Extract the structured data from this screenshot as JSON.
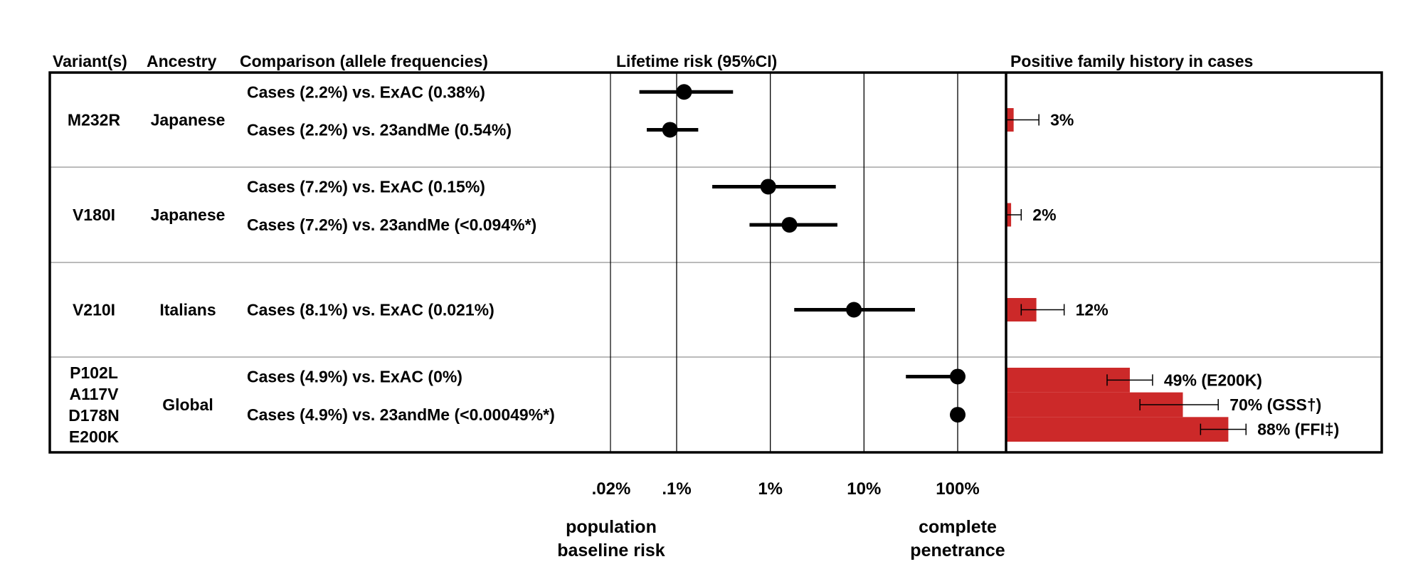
{
  "chart_data": {
    "type": "forest-plot-with-bars",
    "columns": {
      "variants": "Variant(s)",
      "ancestry": "Ancestry",
      "comparison": "Comparison (allele frequencies)",
      "risk": "Lifetime risk (95%CI)",
      "family": "Positive family history in cases"
    },
    "groups": [
      {
        "variants": [
          "M232R"
        ],
        "ancestry": "Japanese",
        "rows": [
          {
            "label": "Cases (2.2%) vs. ExAC (0.38%)",
            "estimate": 0.12,
            "lower": 0.04,
            "upper": 0.4
          },
          {
            "label": "Cases (2.2%) vs. 23andMe (0.54%)",
            "estimate": 0.085,
            "lower": 0.048,
            "upper": 0.17
          }
        ],
        "family": {
          "value": 3,
          "lower": 0,
          "upper": 13,
          "label": "3%"
        }
      },
      {
        "variants": [
          "V180I"
        ],
        "ancestry": "Japanese",
        "rows": [
          {
            "label": "Cases (7.2%) vs. ExAC (0.15%)",
            "estimate": 0.95,
            "lower": 0.24,
            "upper": 5.0
          },
          {
            "label": "Cases (7.2%) vs. 23andMe (<0.094%*)",
            "estimate": 1.6,
            "lower": 0.6,
            "upper": 5.2
          }
        ],
        "family": {
          "value": 2,
          "lower": 0,
          "upper": 6,
          "label": "2%"
        }
      },
      {
        "variants": [
          "V210I"
        ],
        "ancestry": "Italians",
        "rows": [
          {
            "label": "Cases (8.1%) vs. ExAC (0.021%)",
            "estimate": 7.8,
            "lower": 1.8,
            "upper": 35
          }
        ],
        "family": {
          "value": 12,
          "lower": 6,
          "upper": 23,
          "label": "12%"
        }
      },
      {
        "variants": [
          "P102L",
          "A117V",
          "D178N",
          "E200K"
        ],
        "ancestry": "Global",
        "rows": [
          {
            "label": "Cases (4.9%) vs. ExAC (0%)",
            "estimate": 100,
            "lower": 28,
            "upper": 100
          },
          {
            "label": "Cases (4.9%) vs. 23andMe (<0.00049%*)",
            "estimate": 100,
            "lower": 85,
            "upper": 100
          }
        ],
        "family_bars": [
          {
            "value": 49,
            "lower": 40,
            "upper": 58,
            "label": "49% (E200K)"
          },
          {
            "value": 70,
            "lower": 53,
            "upper": 84,
            "label": "70% (GSS†)"
          },
          {
            "value": 88,
            "lower": 77,
            "upper": 95,
            "label": "88% (FFI‡)"
          }
        ]
      }
    ],
    "xaxis": {
      "scale": "log",
      "range": [
        0.02,
        100
      ],
      "gridlines": [
        0.1,
        1,
        10,
        100
      ],
      "ticks": [
        {
          "value": 0.02,
          "label": ".02%"
        },
        {
          "value": 0.1,
          "label": ".1%"
        },
        {
          "value": 1,
          "label": "1%"
        },
        {
          "value": 10,
          "label": "10%"
        },
        {
          "value": 100,
          "label": "100%"
        }
      ]
    },
    "family_axis": {
      "range": [
        0,
        100
      ]
    },
    "bar_color": "#cc2929",
    "annotations": {
      "left": [
        "population",
        "baseline risk"
      ],
      "right": [
        "complete",
        "penetrance"
      ]
    }
  }
}
